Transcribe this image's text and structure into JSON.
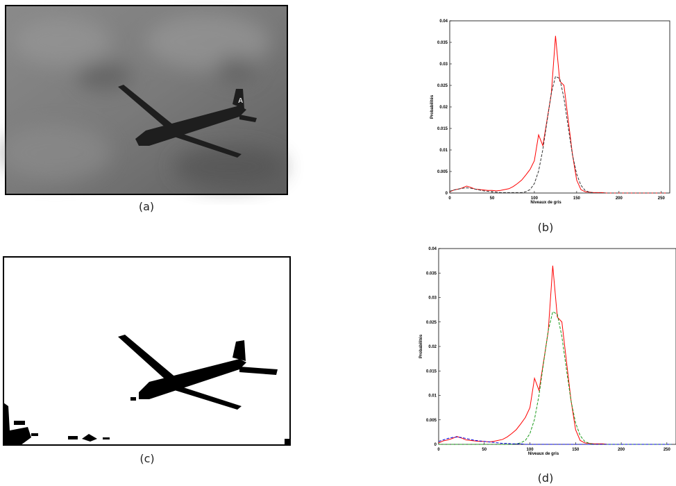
{
  "captions": [
    "(a)",
    "(b)",
    "(c)",
    "(d)"
  ],
  "chart_data": [
    {
      "type": "line",
      "xlabel": "Niveaux de gris",
      "ylabel": "Probabilités",
      "xlim": [
        0,
        260
      ],
      "ylim": [
        0,
        0.04
      ],
      "xticks": [
        0,
        50,
        100,
        150,
        200,
        250
      ],
      "yticks": [
        0,
        0.005,
        0.01,
        0.015,
        0.02,
        0.025,
        0.03,
        0.035,
        0.04
      ],
      "x": [
        0,
        5,
        10,
        15,
        20,
        25,
        30,
        35,
        40,
        45,
        50,
        55,
        60,
        65,
        70,
        75,
        80,
        85,
        90,
        95,
        100,
        105,
        110,
        115,
        120,
        125,
        130,
        135,
        140,
        145,
        150,
        155,
        160,
        165,
        170,
        175,
        180,
        185,
        190,
        195,
        200,
        205,
        210,
        215,
        220,
        225,
        230,
        235,
        240,
        245,
        250,
        255
      ],
      "series": [
        {
          "color": "#ff0000",
          "dash": false,
          "values": [
            0.0003,
            0.0007,
            0.0009,
            0.0012,
            0.0016,
            0.0013,
            0.0009,
            0.0008,
            0.0007,
            0.0006,
            0.0006,
            0.0005,
            0.0006,
            0.0008,
            0.001,
            0.0015,
            0.0022,
            0.003,
            0.0042,
            0.0055,
            0.0075,
            0.0135,
            0.011,
            0.017,
            0.023,
            0.0365,
            0.026,
            0.025,
            0.017,
            0.009,
            0.003,
            0.0008,
            0.0003,
            0.0002,
            0.0001,
            0.0001,
            0.0001,
            0,
            0,
            0,
            0,
            0,
            0,
            0,
            0,
            0,
            0,
            0,
            0,
            0,
            0,
            0
          ]
        },
        {
          "color": "#333333",
          "dash": true,
          "values": [
            0.0004,
            0.0007,
            0.0009,
            0.0011,
            0.0012,
            0.0011,
            0.0009,
            0.0007,
            0.0005,
            0.0004,
            0.0003,
            0.0002,
            0.0001,
            0.0001,
            0.0001,
            0.0001,
            0.0001,
            0.0001,
            0.0003,
            0.0008,
            0.0022,
            0.0051,
            0.0101,
            0.0167,
            0.0232,
            0.0271,
            0.0266,
            0.022,
            0.0153,
            0.0089,
            0.0044,
            0.0018,
            0.0006,
            0.0002,
            0,
            0,
            0,
            0,
            0,
            0,
            0,
            0,
            0,
            0,
            0,
            0,
            0,
            0,
            0,
            0,
            0,
            0
          ]
        }
      ]
    },
    {
      "type": "line",
      "xlabel": "Niveaux de gris",
      "ylabel": "Probabilités",
      "xlim": [
        0,
        260
      ],
      "ylim": [
        0,
        0.04
      ],
      "xticks": [
        0,
        50,
        100,
        150,
        200,
        250
      ],
      "yticks": [
        0,
        0.005,
        0.01,
        0.015,
        0.02,
        0.025,
        0.03,
        0.035,
        0.04
      ],
      "x": [
        0,
        5,
        10,
        15,
        20,
        25,
        30,
        35,
        40,
        45,
        50,
        55,
        60,
        65,
        70,
        75,
        80,
        85,
        90,
        95,
        100,
        105,
        110,
        115,
        120,
        125,
        130,
        135,
        140,
        145,
        150,
        155,
        160,
        165,
        170,
        175,
        180,
        185,
        190,
        195,
        200,
        205,
        210,
        215,
        220,
        225,
        230,
        235,
        240,
        245,
        250,
        255
      ],
      "series": [
        {
          "color": "#ff0000",
          "dash": false,
          "values": [
            0.0003,
            0.0007,
            0.0009,
            0.0012,
            0.0016,
            0.0013,
            0.0009,
            0.0008,
            0.0007,
            0.0006,
            0.0006,
            0.0005,
            0.0006,
            0.0008,
            0.001,
            0.0015,
            0.0022,
            0.003,
            0.0042,
            0.0055,
            0.0075,
            0.0135,
            0.011,
            0.017,
            0.023,
            0.0365,
            0.026,
            0.025,
            0.017,
            0.009,
            0.003,
            0.0008,
            0.0003,
            0.0002,
            0.0001,
            0.0001,
            0.0001,
            0,
            0,
            0,
            0,
            0,
            0,
            0,
            0,
            0,
            0,
            0,
            0,
            0,
            0,
            0
          ]
        },
        {
          "color": "#1a9a1a",
          "dash": true,
          "values": [
            0,
            0,
            0,
            0,
            0,
            0,
            0,
            0,
            0,
            0,
            0,
            0,
            0,
            0,
            0,
            0,
            0,
            0.0001,
            0.0003,
            0.0008,
            0.0022,
            0.0051,
            0.0101,
            0.0167,
            0.0232,
            0.0271,
            0.0266,
            0.022,
            0.0153,
            0.0089,
            0.0044,
            0.0018,
            0.0006,
            0.0002,
            0,
            0,
            0,
            0,
            0,
            0,
            0,
            0,
            0,
            0,
            0,
            0,
            0,
            0,
            0,
            0,
            0,
            0
          ]
        },
        {
          "color": "#0000dd",
          "dash": true,
          "values": [
            0.0006,
            0.0009,
            0.0012,
            0.0014,
            0.0015,
            0.0014,
            0.0012,
            0.001,
            0.0008,
            0.0007,
            0.0006,
            0.0005,
            0.0004,
            0.0003,
            0.0002,
            0.0002,
            0.0001,
            0.0001,
            0.0001,
            0,
            0,
            0,
            0,
            0,
            0,
            0,
            0,
            0,
            0,
            0,
            0,
            0,
            0,
            0,
            0,
            0,
            0,
            0,
            0,
            0,
            0,
            0,
            0,
            0,
            0,
            0,
            0,
            0,
            0,
            0,
            0,
            0
          ]
        }
      ]
    }
  ]
}
